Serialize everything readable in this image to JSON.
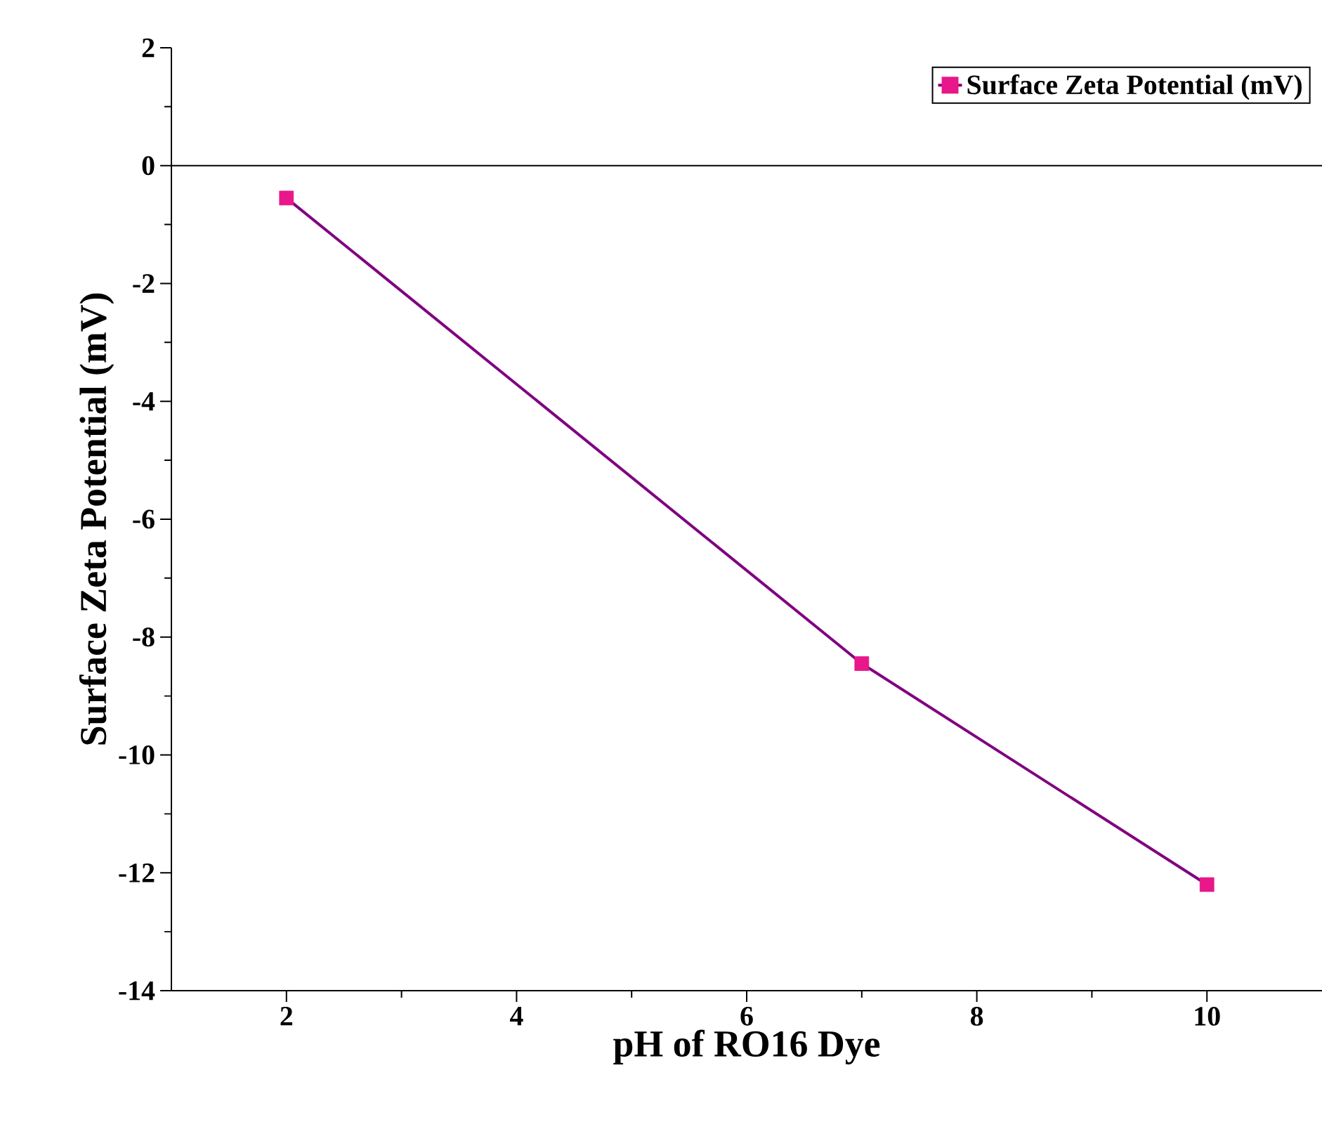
{
  "chart_data": {
    "type": "line",
    "xlabel": "pH of RO16 Dye",
    "ylabel": "Surface Zeta Potential (mV)",
    "x": [
      2,
      7,
      10
    ],
    "series": [
      {
        "name": "Surface Zeta Potential (mV)",
        "color": "#800080",
        "colors": [
          "#e8178a",
          "#e8178a",
          "#e8178a"
        ],
        "values": [
          -0.55,
          -8.45,
          -12.2
        ]
      }
    ],
    "xlim": [
      1,
      11
    ],
    "ylim": [
      -14,
      2
    ],
    "xticks": [
      2,
      4,
      6,
      8,
      10
    ],
    "yticks": [
      -14,
      -12,
      -10,
      -8,
      -6,
      -4,
      -2,
      0,
      2
    ],
    "ref_lines": [
      {
        "axis": "y",
        "value": 0,
        "color": "#000000"
      }
    ],
    "legend": "top right",
    "marker": "square",
    "line_style": "solid"
  }
}
